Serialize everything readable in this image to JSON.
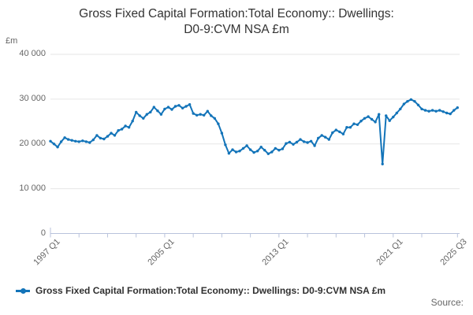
{
  "header": {
    "title_line1": "Gross Fixed Capital Formation:Total Economy:: Dwellings:",
    "title_line2": "D0-9:CVM NSA £m"
  },
  "y_axis": {
    "unit_label": "£m",
    "ticks": [
      {
        "label": "40 000",
        "value": 40000
      },
      {
        "label": "30 000",
        "value": 30000
      },
      {
        "label": "20 000",
        "value": 20000
      },
      {
        "label": "10 000",
        "value": 10000
      },
      {
        "label": "0",
        "value": 0
      }
    ]
  },
  "x_axis": {
    "tick_labels": [
      {
        "label": "1997 Q1",
        "q": 0
      },
      {
        "label": "2005 Q1",
        "q": 32
      },
      {
        "label": "2013 Q1",
        "q": 64
      },
      {
        "label": "2021 Q1",
        "q": 96
      },
      {
        "label": "2025 Q3",
        "q": 114
      }
    ],
    "minor_tick_interval_quarters": 8
  },
  "legend": {
    "label": "Gross Fixed Capital Formation:Total Economy:: Dwellings: D0-9:CVM NSA £m"
  },
  "footer": {
    "source_label": "Source:"
  },
  "colors": {
    "series_line": "#1374b9",
    "axis_line": "#b9c3dc",
    "gridline": "#e6e6e6",
    "tick_label_text": "#666666",
    "title_text": "#333333"
  },
  "chart_data": {
    "type": "line",
    "title": "Gross Fixed Capital Formation:Total Economy:: Dwellings: D0-9:CVM NSA £m",
    "series_name": "Gross Fixed Capital Formation:Total Economy:: Dwellings: D0-9:CVM NSA £m",
    "xlabel": "",
    "ylabel": "£m",
    "frequency": "quarterly",
    "x_start": "1997 Q1",
    "x_end": "2025 Q3",
    "x_tick_labels": [
      "1997 Q1",
      "2005 Q1",
      "2013 Q1",
      "2021 Q1",
      "2025 Q3"
    ],
    "ylim": [
      0,
      40000
    ],
    "grid": true,
    "legend_position": "bottom-left",
    "values": [
      20600,
      20000,
      19300,
      20500,
      21400,
      21000,
      20800,
      20600,
      20500,
      20700,
      20500,
      20300,
      20900,
      21900,
      21300,
      21100,
      21700,
      22400,
      21900,
      23000,
      23300,
      24000,
      23700,
      25100,
      27100,
      26300,
      25700,
      26600,
      27100,
      28200,
      27400,
      26600,
      27800,
      28200,
      27700,
      28400,
      28600,
      28000,
      28400,
      28800,
      26800,
      26400,
      26600,
      26400,
      27300,
      26300,
      25700,
      24500,
      22400,
      19800,
      17900,
      18700,
      18200,
      18400,
      19000,
      19600,
      18700,
      18100,
      18400,
      19300,
      18600,
      17800,
      18200,
      19000,
      18600,
      18900,
      20100,
      20400,
      19900,
      20400,
      21000,
      20500,
      20300,
      20600,
      19600,
      21300,
      21900,
      21500,
      21000,
      22500,
      23100,
      22700,
      22200,
      23700,
      23700,
      24500,
      24300,
      25100,
      25700,
      26100,
      25500,
      24900,
      26600,
      15500,
      26300,
      25200,
      26000,
      26900,
      27800,
      28900,
      29500,
      29900,
      29500,
      28700,
      27800,
      27500,
      27300,
      27500,
      27300,
      27500,
      27200,
      26900,
      26700,
      27500,
      28100
    ]
  }
}
